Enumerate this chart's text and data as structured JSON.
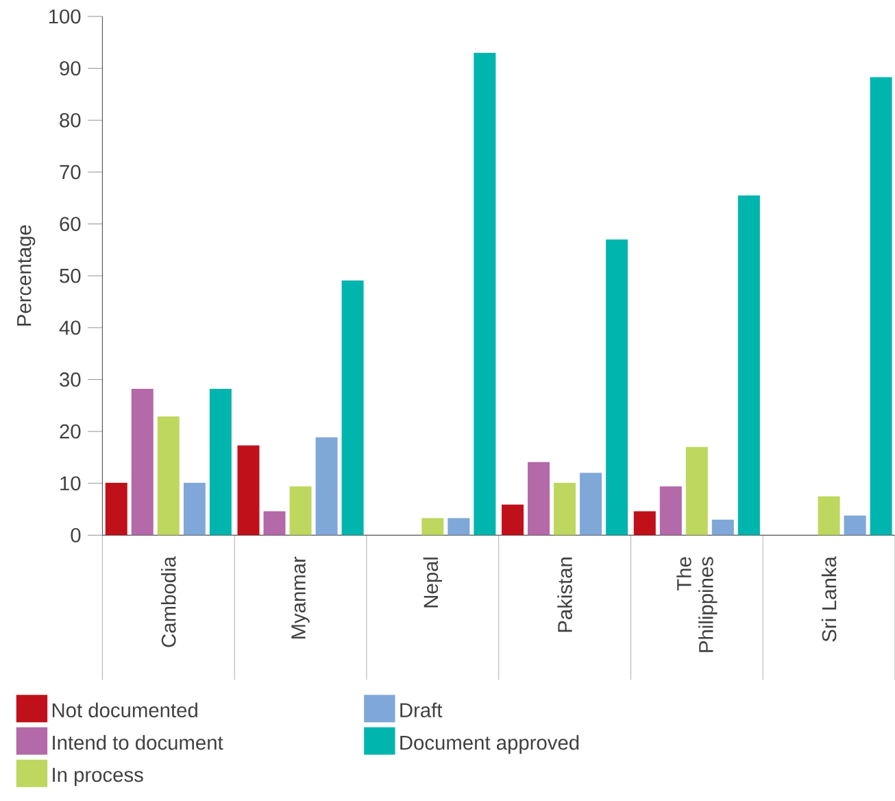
{
  "chart_data": {
    "type": "bar",
    "ylabel": "Percentage",
    "categories": [
      "Cambodia",
      "Myanmar",
      "Nepal",
      "Pakistan",
      "The Philippines",
      "Sri Lanka"
    ],
    "series": [
      {
        "name": "Not documented",
        "color": "#c0111a",
        "values": [
          10.1,
          17.3,
          0,
          5.9,
          4.6,
          0
        ]
      },
      {
        "name": "Intend to document",
        "color": "#b469a8",
        "values": [
          28.2,
          4.6,
          0,
          14.1,
          9.4,
          0
        ]
      },
      {
        "name": "In process",
        "color": "#bed75e",
        "values": [
          22.9,
          9.4,
          3.3,
          10.1,
          17.0,
          7.5
        ]
      },
      {
        "name": "Draft",
        "color": "#7fa7d8",
        "values": [
          10.1,
          18.9,
          3.3,
          12.0,
          3.0,
          3.8
        ]
      },
      {
        "name": "Document approved",
        "color": "#00b5ae",
        "values": [
          28.2,
          49.1,
          93.0,
          57.0,
          65.5,
          88.3
        ]
      }
    ],
    "ylim": [
      0,
      100
    ],
    "yticks": [
      0,
      10,
      20,
      30,
      40,
      50,
      60,
      70,
      80,
      90,
      100
    ],
    "legend": "bottom"
  }
}
